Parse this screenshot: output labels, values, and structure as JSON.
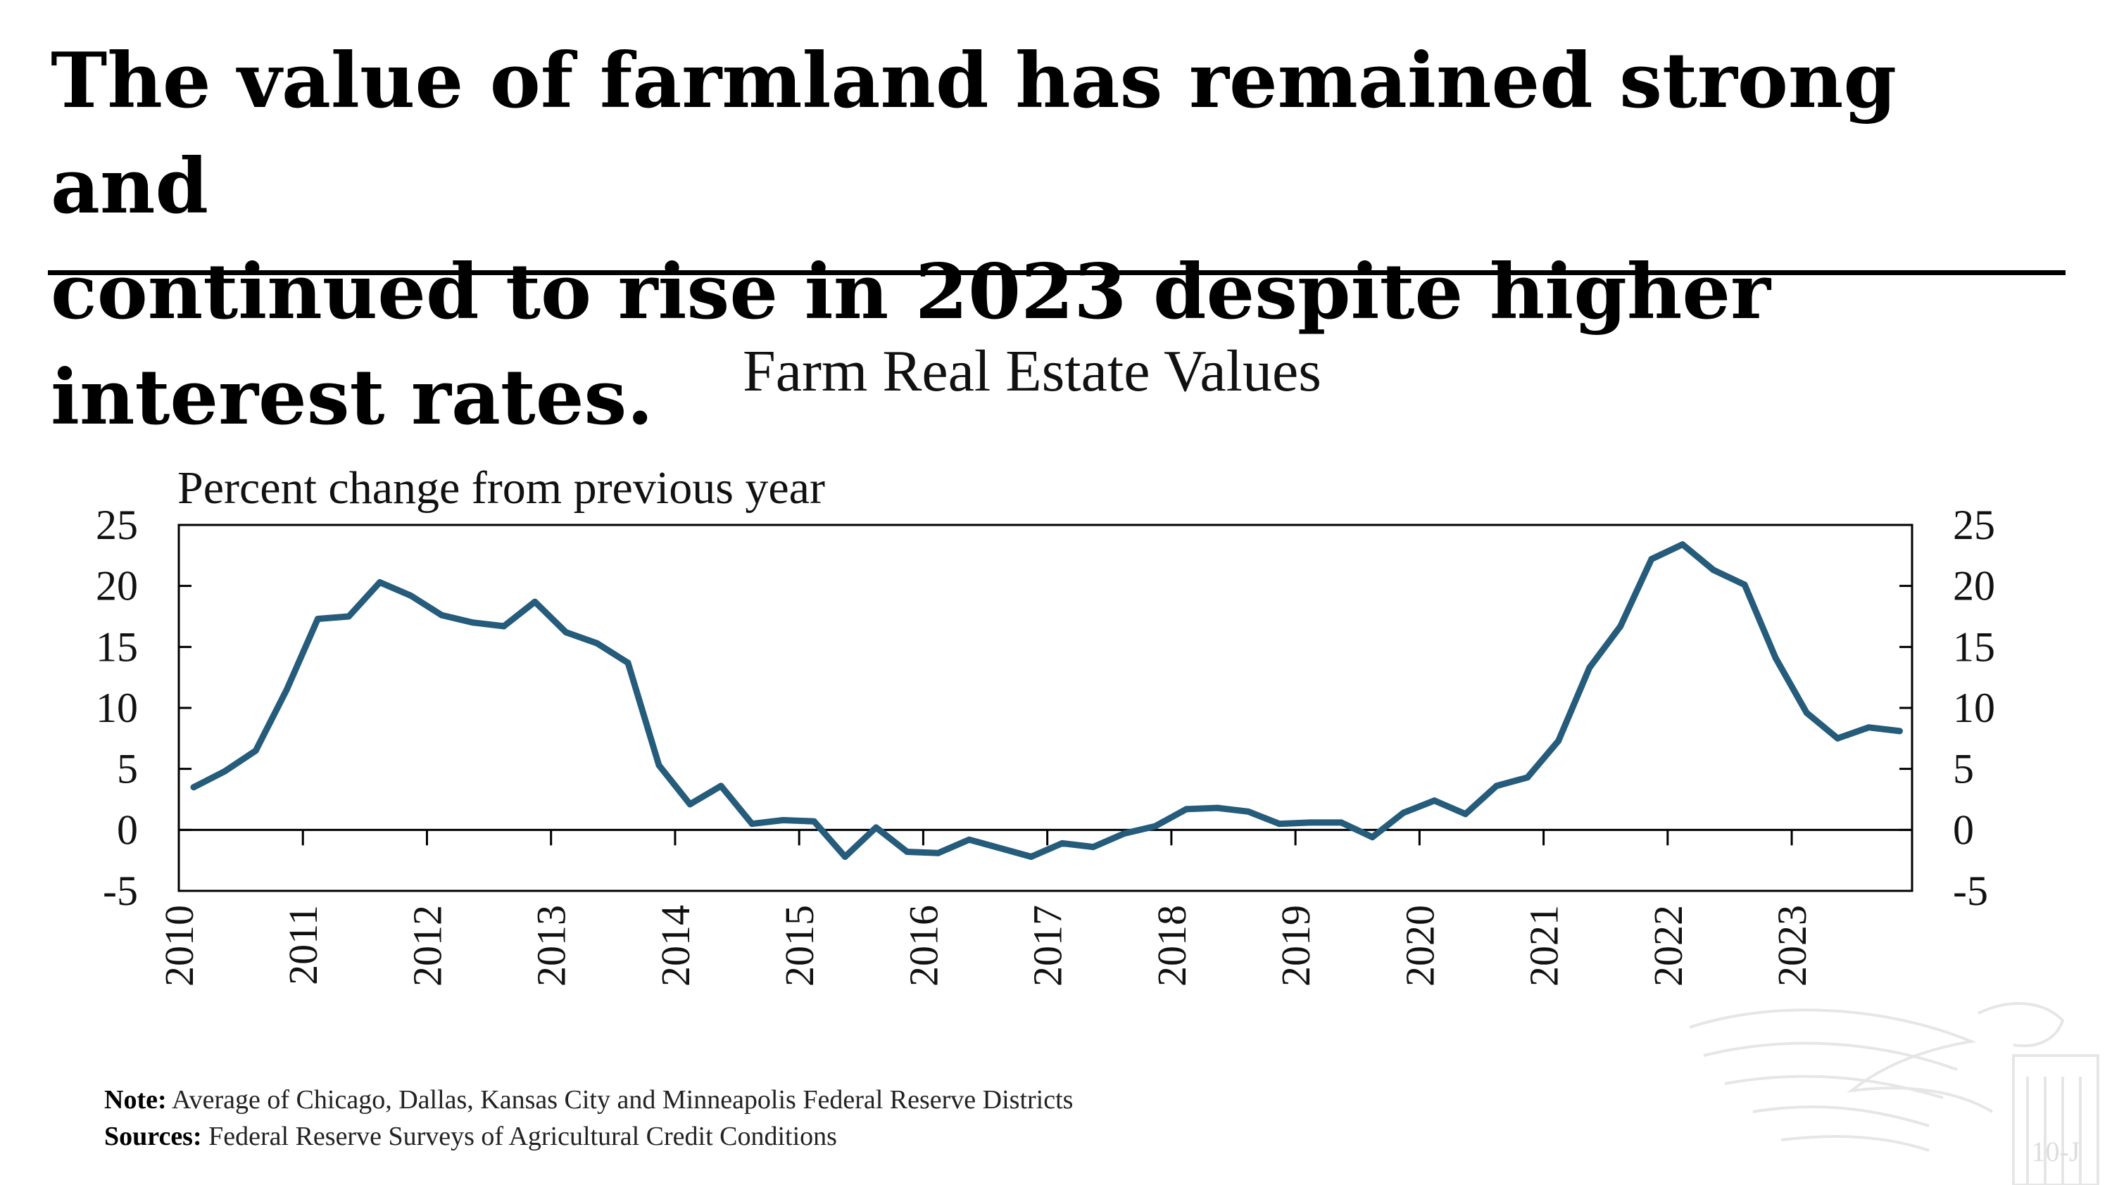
{
  "headline": {
    "line1": "The value of  farmland has remained strong and",
    "line2": "continued to rise in 2023 despite higher interest rates."
  },
  "footnote": {
    "note_label": "Note:",
    "note_text": "Average of Chicago, Dallas, Kansas City and Minneapolis Federal Reserve Districts",
    "sources_label": "Sources:",
    "sources_text": "Federal Reserve Surveys of Agricultural Credit Conditions"
  },
  "seal": {
    "text": "10-J"
  },
  "colors": {
    "series": "#255b7b",
    "axis": "#000000",
    "text": "#111111",
    "seal": "#e6e6e6"
  },
  "chart_data": {
    "type": "line",
    "title": "Farm Real Estate Values",
    "ylabel": "Percent change from previous year",
    "xlabel": "",
    "ylim": [
      -5,
      25
    ],
    "yticks": [
      25,
      20,
      15,
      10,
      5,
      0,
      -5
    ],
    "xlim": [
      2010,
      2023.97
    ],
    "xticks": [
      "2010",
      "2011",
      "2012",
      "2013",
      "2014",
      "2015",
      "2016",
      "2017",
      "2018",
      "2019",
      "2020",
      "2021",
      "2022",
      "2023"
    ],
    "series": [
      {
        "name": "Farm real estate values",
        "x": [
          2010.12,
          2010.37,
          2010.62,
          2010.87,
          2011.12,
          2011.37,
          2011.62,
          2011.87,
          2012.12,
          2012.37,
          2012.62,
          2012.87,
          2013.12,
          2013.37,
          2013.62,
          2013.87,
          2014.12,
          2014.37,
          2014.62,
          2014.87,
          2015.12,
          2015.37,
          2015.62,
          2015.87,
          2016.12,
          2016.37,
          2016.62,
          2016.87,
          2017.12,
          2017.37,
          2017.62,
          2017.87,
          2018.12,
          2018.37,
          2018.62,
          2018.87,
          2019.12,
          2019.37,
          2019.62,
          2019.87,
          2020.12,
          2020.37,
          2020.62,
          2020.87,
          2021.12,
          2021.37,
          2021.62,
          2021.87,
          2022.12,
          2022.37,
          2022.62,
          2022.87,
          2023.12,
          2023.37,
          2023.62,
          2023.87
        ],
        "values": [
          3.5,
          4.8,
          6.5,
          11.5,
          17.3,
          17.5,
          20.3,
          19.2,
          17.6,
          17.0,
          16.7,
          18.7,
          16.2,
          15.3,
          13.7,
          5.3,
          2.1,
          3.6,
          0.5,
          0.8,
          0.7,
          -2.2,
          0.2,
          -1.8,
          -1.9,
          -0.8,
          -1.5,
          -2.2,
          -1.1,
          -1.4,
          -0.3,
          0.3,
          1.7,
          1.8,
          1.5,
          0.5,
          0.6,
          0.6,
          -0.6,
          1.4,
          2.4,
          1.3,
          3.6,
          4.3,
          7.3,
          13.3,
          16.7,
          22.2,
          23.4,
          21.3,
          20.1,
          14.1,
          9.6,
          7.5,
          8.4,
          8.1
        ]
      }
    ]
  }
}
